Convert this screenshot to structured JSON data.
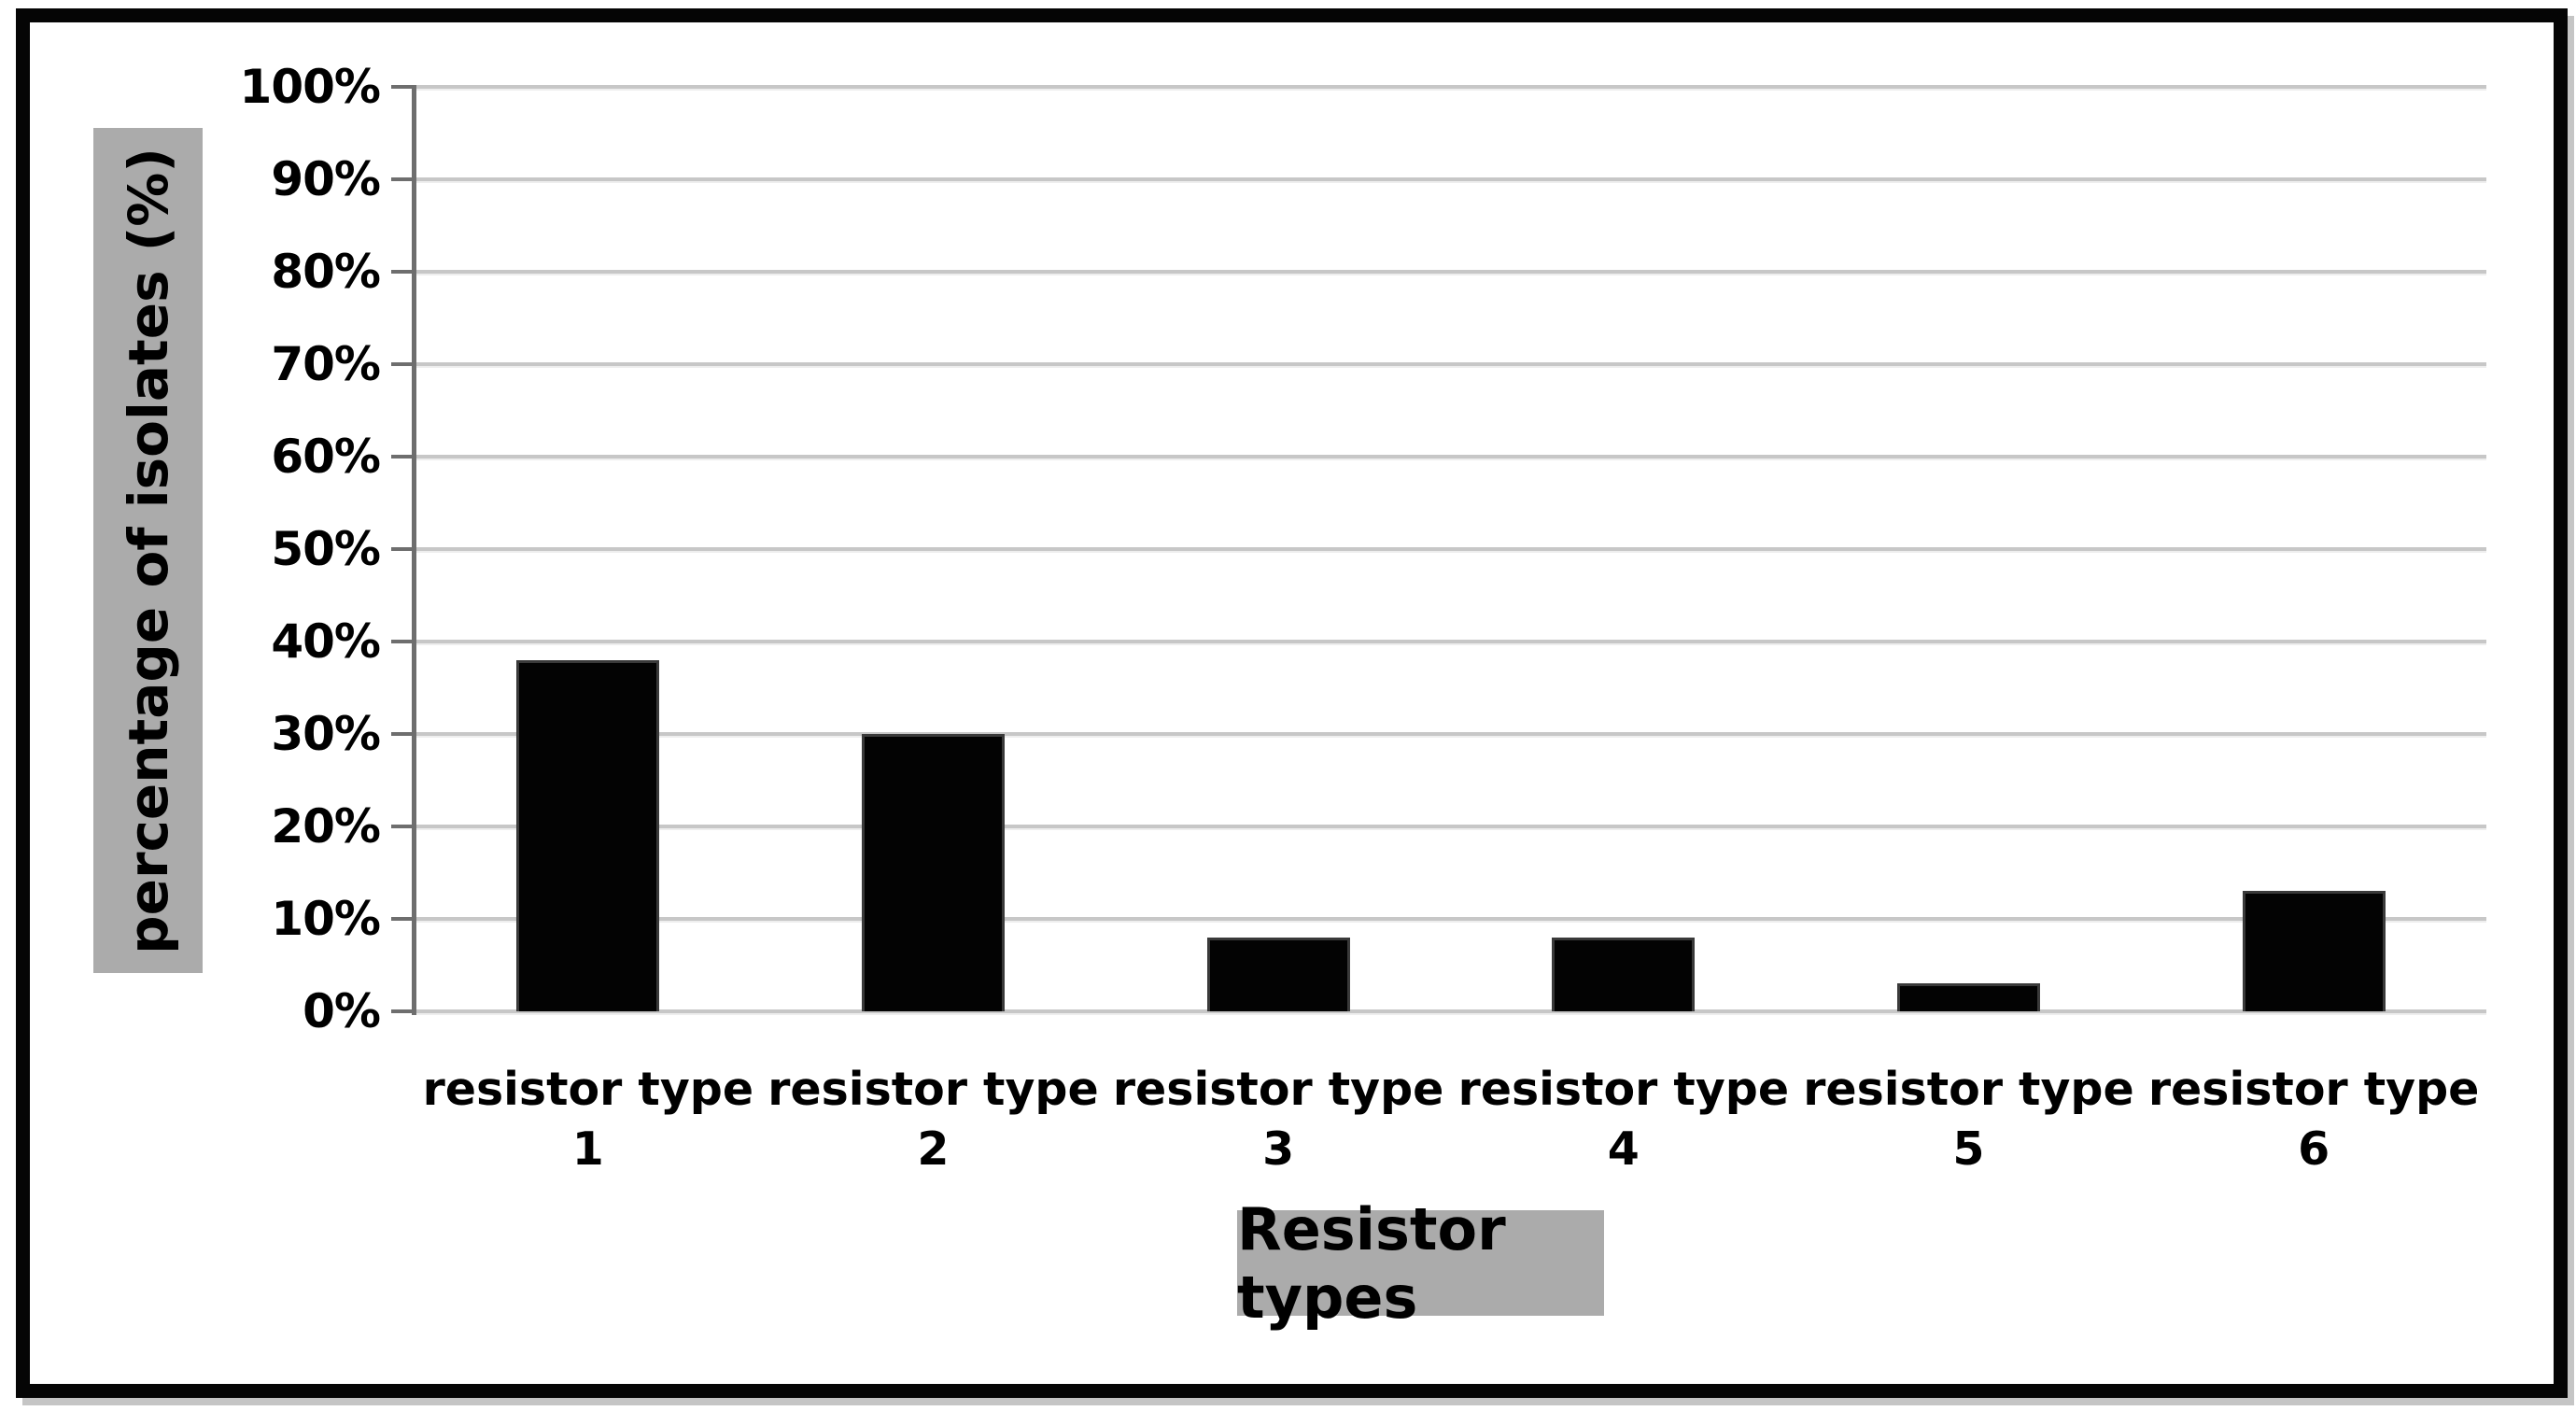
{
  "chart_data": {
    "type": "bar",
    "title": "",
    "categories": [
      "resistor type 1",
      "resistor type 2",
      "resistor type 3",
      "resistor type 4",
      "resistor type 5",
      "resistor type 6"
    ],
    "values": [
      38,
      30,
      8,
      8,
      3,
      13
    ],
    "xlabel": "Resistor types",
    "ylabel": "percentage of isolates (%)",
    "ylim": [
      0,
      100
    ],
    "ytick_step": 10,
    "ytick_labels": [
      "0%",
      "10%",
      "20%",
      "30%",
      "40%",
      "50%",
      "60%",
      "70%",
      "80%",
      "90%",
      "100%"
    ],
    "grid": "horizontal",
    "legend_position": "none",
    "bar_color": "#000000"
  },
  "axis_titles": {
    "y": "percentage of isolates (%)",
    "x": "Resistor types"
  },
  "colors": {
    "background": "#ffffff",
    "frame_border": "#050505",
    "bar": "#030303",
    "gridline": "#c7c7c7",
    "axis_line": "#6e6e6e",
    "label_box_bg": "#ababab",
    "text": "#000000"
  }
}
